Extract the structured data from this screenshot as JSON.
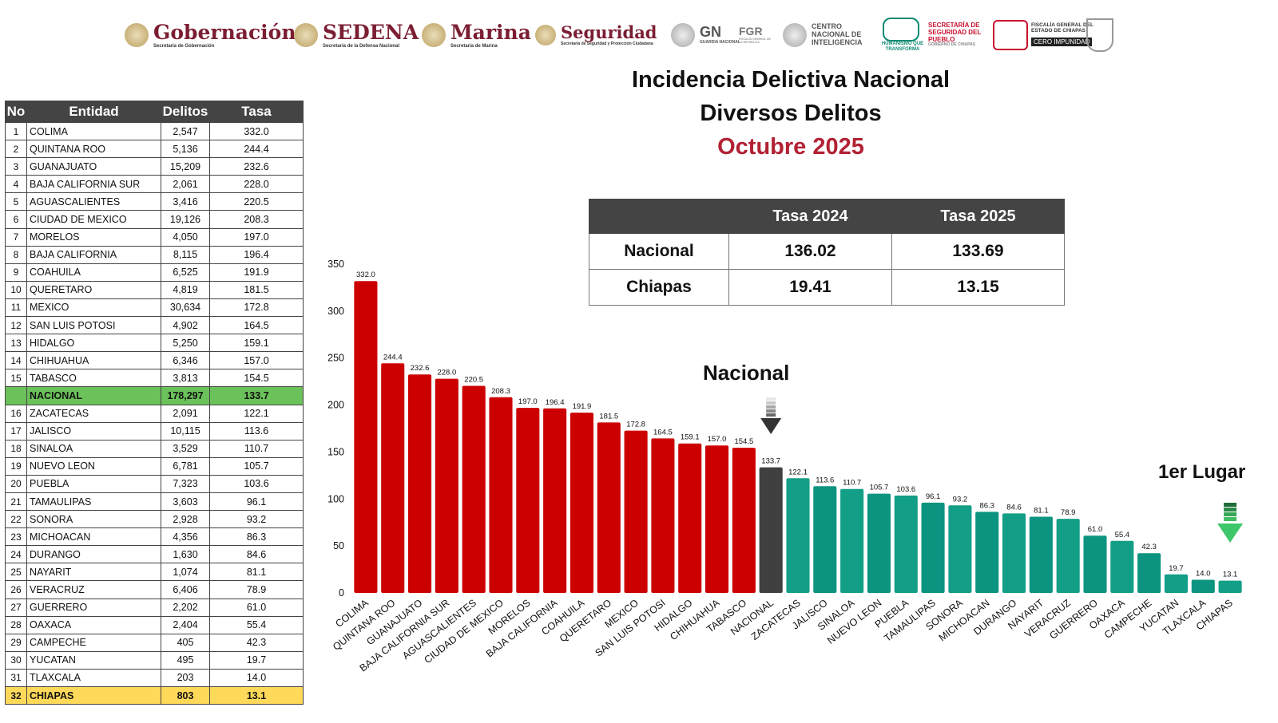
{
  "logos": {
    "gobernacion": {
      "name": "Gobernación",
      "sub": "Secretaría de Gobernación"
    },
    "sedena": {
      "name": "SEDENA",
      "sub": "Secretaría de la Defensa Nacional"
    },
    "marina": {
      "name": "Marina",
      "sub": "Secretaría de Marina"
    },
    "seguridad": {
      "name": "Seguridad",
      "sub": "Secretaría de Seguridad y Protección Ciudadana"
    },
    "gn": {
      "name": "GN",
      "sub": "GUARDIA NACIONAL"
    },
    "fgr": {
      "name": "FGR",
      "sub": "FISCALÍA GENERAL DE LA REPÚBLICA"
    },
    "cni": {
      "name": "CENTRO NACIONAL DE INTELIGENCIA"
    },
    "humanismo": {
      "name": "HUMANISMO QUE TRANSFORMA"
    },
    "ssp_chiapas": {
      "name": "SECRETARÍA DE SEGURIDAD DEL PUEBLO",
      "sub": "GOBIERNO DE CHIAPAS"
    },
    "fge_chiapas": {
      "name": "FISCALÍA GENERAL DEL ESTADO DE CHIAPAS",
      "sub": "CERO IMPUNIDAD"
    }
  },
  "title": {
    "line1": "Incidencia Delictiva Nacional",
    "line2": "Diversos Delitos",
    "line3": "Octubre 2025"
  },
  "summary_table": {
    "headers": [
      "",
      "Tasa 2024",
      "Tasa 2025"
    ],
    "rows": [
      {
        "label": "Nacional",
        "tasa2024": "136.02",
        "tasa2025": "133.69"
      },
      {
        "label": "Chiapas",
        "tasa2024": "19.41",
        "tasa2025": "13.15"
      }
    ]
  },
  "rank_table": {
    "headers": {
      "no": "No",
      "entidad": "Entidad",
      "delitos": "Delitos",
      "tasa": "Tasa"
    },
    "rows": [
      {
        "no": "1",
        "entidad": "COLIMA",
        "delitos": "2,547",
        "tasa": "332.0"
      },
      {
        "no": "2",
        "entidad": "QUINTANA ROO",
        "delitos": "5,136",
        "tasa": "244.4"
      },
      {
        "no": "3",
        "entidad": "GUANAJUATO",
        "delitos": "15,209",
        "tasa": "232.6"
      },
      {
        "no": "4",
        "entidad": "BAJA CALIFORNIA SUR",
        "delitos": "2,061",
        "tasa": "228.0"
      },
      {
        "no": "5",
        "entidad": "AGUASCALIENTES",
        "delitos": "3,416",
        "tasa": "220.5"
      },
      {
        "no": "6",
        "entidad": "CIUDAD DE MEXICO",
        "delitos": "19,126",
        "tasa": "208.3"
      },
      {
        "no": "7",
        "entidad": "MORELOS",
        "delitos": "4,050",
        "tasa": "197.0"
      },
      {
        "no": "8",
        "entidad": "BAJA CALIFORNIA",
        "delitos": "8,115",
        "tasa": "196.4"
      },
      {
        "no": "9",
        "entidad": "COAHUILA",
        "delitos": "6,525",
        "tasa": "191.9"
      },
      {
        "no": "10",
        "entidad": "QUERETARO",
        "delitos": "4,819",
        "tasa": "181.5"
      },
      {
        "no": "11",
        "entidad": "MEXICO",
        "delitos": "30,634",
        "tasa": "172.8"
      },
      {
        "no": "12",
        "entidad": "SAN LUIS POTOSI",
        "delitos": "4,902",
        "tasa": "164.5"
      },
      {
        "no": "13",
        "entidad": "HIDALGO",
        "delitos": "5,250",
        "tasa": "159.1"
      },
      {
        "no": "14",
        "entidad": "CHIHUAHUA",
        "delitos": "6,346",
        "tasa": "157.0"
      },
      {
        "no": "15",
        "entidad": "TABASCO",
        "delitos": "3,813",
        "tasa": "154.5"
      },
      {
        "no": "",
        "entidad": "NACIONAL",
        "delitos": "178,297",
        "tasa": "133.7",
        "highlight": "green"
      },
      {
        "no": "16",
        "entidad": "ZACATECAS",
        "delitos": "2,091",
        "tasa": "122.1"
      },
      {
        "no": "17",
        "entidad": "JALISCO",
        "delitos": "10,115",
        "tasa": "113.6"
      },
      {
        "no": "18",
        "entidad": "SINALOA",
        "delitos": "3,529",
        "tasa": "110.7"
      },
      {
        "no": "19",
        "entidad": "NUEVO LEON",
        "delitos": "6,781",
        "tasa": "105.7"
      },
      {
        "no": "20",
        "entidad": "PUEBLA",
        "delitos": "7,323",
        "tasa": "103.6"
      },
      {
        "no": "21",
        "entidad": "TAMAULIPAS",
        "delitos": "3,603",
        "tasa": "96.1"
      },
      {
        "no": "22",
        "entidad": "SONORA",
        "delitos": "2,928",
        "tasa": "93.2"
      },
      {
        "no": "23",
        "entidad": "MICHOACAN",
        "delitos": "4,356",
        "tasa": "86.3"
      },
      {
        "no": "24",
        "entidad": "DURANGO",
        "delitos": "1,630",
        "tasa": "84.6"
      },
      {
        "no": "25",
        "entidad": "NAYARIT",
        "delitos": "1,074",
        "tasa": "81.1"
      },
      {
        "no": "26",
        "entidad": "VERACRUZ",
        "delitos": "6,406",
        "tasa": "78.9"
      },
      {
        "no": "27",
        "entidad": "GUERRERO",
        "delitos": "2,202",
        "tasa": "61.0"
      },
      {
        "no": "28",
        "entidad": "OAXACA",
        "delitos": "2,404",
        "tasa": "55.4"
      },
      {
        "no": "29",
        "entidad": "CAMPECHE",
        "delitos": "405",
        "tasa": "42.3"
      },
      {
        "no": "30",
        "entidad": "YUCATAN",
        "delitos": "495",
        "tasa": "19.7"
      },
      {
        "no": "31",
        "entidad": "TLAXCALA",
        "delitos": "203",
        "tasa": "14.0"
      },
      {
        "no": "32",
        "entidad": "CHIAPAS",
        "delitos": "803",
        "tasa": "13.1",
        "highlight": "yellow"
      }
    ]
  },
  "chart_data": {
    "type": "bar",
    "categories": [
      "COLIMA",
      "QUINTANA ROO",
      "GUANAJUATO",
      "BAJA CALIFORNIA SUR",
      "AGUASCALIENTES",
      "CIUDAD DE MEXICO",
      "MORELOS",
      "BAJA CALIFORNIA",
      "COAHUILA",
      "QUERETARO",
      "MEXICO",
      "SAN LUIS POTOSI",
      "HIDALGO",
      "CHIHUAHUA",
      "TABASCO",
      "NACIONAL",
      "ZACATECAS",
      "JALISCO",
      "SINALOA",
      "NUEVO LEON",
      "PUEBLA",
      "TAMAULIPAS",
      "SONORA",
      "MICHOACAN",
      "DURANGO",
      "NAYARIT",
      "VERACRUZ",
      "GUERRERO",
      "OAXACA",
      "CAMPECHE",
      "YUCATAN",
      "TLAXCALA",
      "CHIAPAS"
    ],
    "values": [
      332.0,
      244.4,
      232.6,
      228.0,
      220.5,
      208.3,
      197.0,
      196.4,
      191.9,
      181.5,
      172.8,
      164.5,
      159.1,
      157.0,
      154.5,
      133.7,
      122.1,
      113.6,
      110.7,
      105.7,
      103.6,
      96.1,
      93.2,
      86.3,
      84.6,
      81.1,
      78.9,
      61.0,
      55.4,
      42.3,
      19.7,
      14.0,
      13.1
    ],
    "value_labels": [
      "332.0",
      "244.4",
      "232.6",
      "228.0",
      "220.5",
      "208.3",
      "197.0",
      "196.4",
      "191.9",
      "181.5",
      "172.8",
      "164.5",
      "159.1",
      "157.0",
      "154.5",
      "133.7",
      "122.1",
      "113.6",
      "110.7",
      "105.7",
      "103.6",
      "96.1",
      "93.2",
      "86.3",
      "84.6",
      "81.1",
      "78.9",
      "61.0",
      "55.4",
      "42.3",
      "19.7",
      "14.0",
      "13.1"
    ],
    "ylim": [
      0,
      350
    ],
    "yticks": [
      0,
      50,
      100,
      150,
      200,
      250,
      300,
      350
    ],
    "ytick_labels": [
      "0",
      "50",
      "100",
      "150",
      "200",
      "250",
      "300",
      "350"
    ],
    "grid": false,
    "colors": {
      "above": "#cc0000",
      "national": "#404040",
      "below": "#139e87",
      "below_alt": "#0c9480"
    },
    "annotations": {
      "nacional": "Nacional",
      "first_place": "1er Lugar"
    }
  }
}
